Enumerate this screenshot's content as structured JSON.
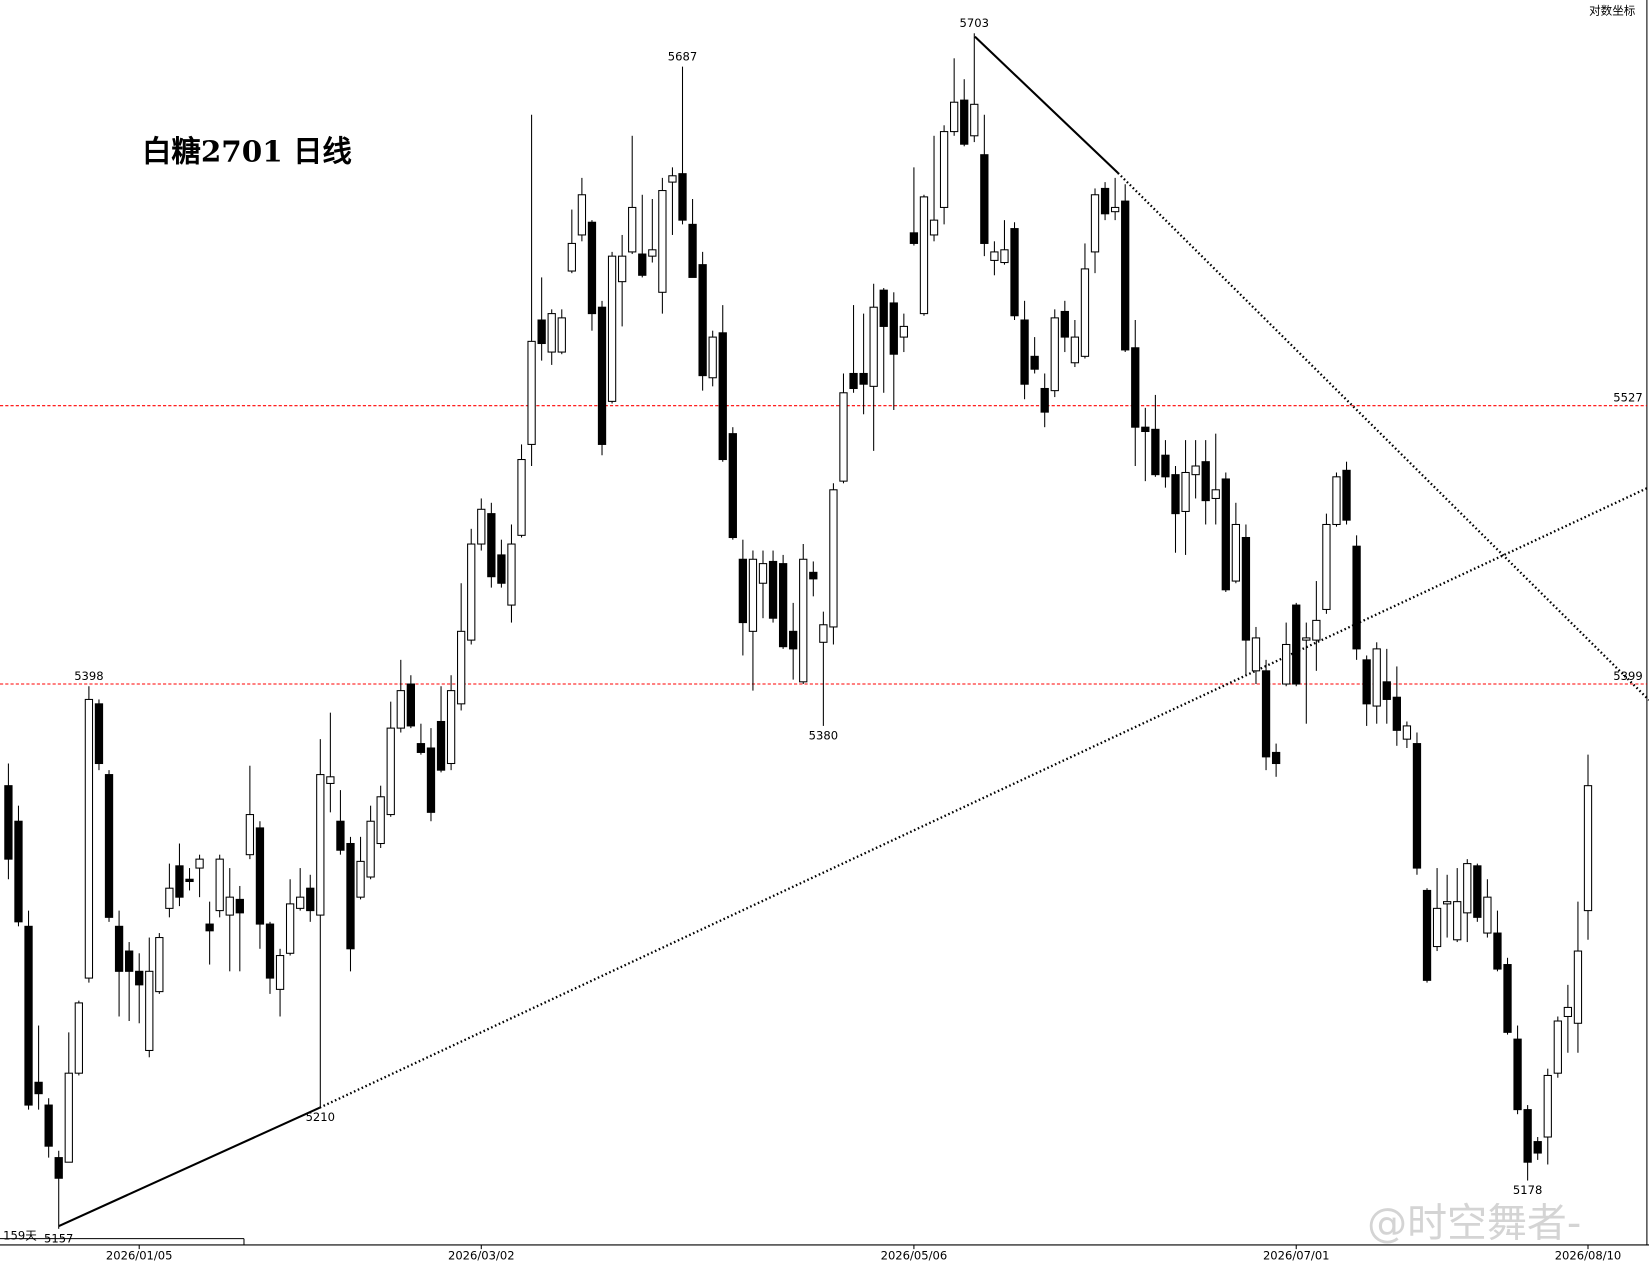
{
  "chart_data": {
    "type": "candlestick",
    "title": "白糖2701  日线",
    "scale_label": "对数坐标",
    "period_label": "159天",
    "watermark": "@时空舞者-",
    "log_scale": true,
    "ylim": [
      5150,
      5719
    ],
    "up_color": "#ffffff",
    "down_color": "#000000",
    "hlines": [
      5527,
      5399
    ],
    "hline_color": "#ff0000",
    "categories": [
      null,
      null,
      null,
      null,
      null,
      null,
      null,
      null,
      null,
      null,
      null,
      null,
      null,
      "2026/01/05",
      null,
      null,
      null,
      null,
      null,
      null,
      null,
      null,
      null,
      null,
      null,
      null,
      null,
      null,
      null,
      null,
      null,
      null,
      null,
      null,
      null,
      null,
      null,
      null,
      null,
      null,
      null,
      null,
      null,
      null,
      null,
      null,
      null,
      "2026/03/02",
      null,
      null,
      null,
      null,
      null,
      null,
      null,
      null,
      null,
      null,
      null,
      null,
      null,
      null,
      null,
      null,
      null,
      null,
      null,
      null,
      null,
      null,
      null,
      null,
      null,
      null,
      null,
      null,
      null,
      null,
      null,
      null,
      null,
      null,
      null,
      null,
      null,
      null,
      null,
      null,
      null,
      null,
      "2026/05/06",
      null,
      null,
      null,
      null,
      null,
      null,
      null,
      null,
      null,
      null,
      null,
      null,
      null,
      null,
      null,
      null,
      null,
      null,
      null,
      null,
      null,
      null,
      null,
      null,
      null,
      null,
      null,
      null,
      null,
      null,
      null,
      null,
      null,
      null,
      null,
      null,
      null,
      "2026/07/01",
      null,
      null,
      null,
      null,
      null,
      null,
      null,
      null,
      null,
      null,
      null,
      null,
      null,
      null,
      null,
      null,
      null,
      null,
      null,
      null,
      null,
      null,
      null,
      null,
      null,
      null,
      null,
      null,
      "2026/08/10"
    ],
    "open": [
      5353,
      5337,
      5290,
      5221,
      5211,
      5188,
      5186,
      5225,
      5267,
      5390,
      5358,
      5290,
      5279,
      5270,
      5235,
      5261,
      5298,
      5317,
      5311,
      5316,
      5291,
      5297,
      5295,
      5302,
      5322,
      5334,
      5291,
      5262,
      5278,
      5298,
      5307,
      5295,
      5354,
      5337,
      5327,
      5303,
      5312,
      5327,
      5340,
      5379,
      5399,
      5372,
      5370,
      5382,
      5363,
      5390,
      5419,
      5463,
      5477,
      5458,
      5435,
      5467,
      5509,
      5567,
      5552,
      5552,
      5590,
      5607,
      5613,
      5573,
      5529,
      5585,
      5599,
      5598,
      5597,
      5580,
      5632,
      5636,
      5612,
      5593,
      5540,
      5561,
      5514,
      5456,
      5423,
      5445,
      5455,
      5454,
      5423,
      5400,
      5450,
      5418,
      5425,
      5492,
      5542,
      5542,
      5536,
      5581,
      5575,
      5559,
      5608,
      5570,
      5607,
      5620,
      5656,
      5671,
      5654,
      5645,
      5595,
      5594,
      5610,
      5567,
      5550,
      5535,
      5534,
      5571,
      5547,
      5550,
      5599,
      5629,
      5618,
      5623,
      5554,
      5517,
      5516,
      5504,
      5495,
      5478,
      5495,
      5501,
      5484,
      5493,
      5446,
      5466,
      5405,
      5405,
      5368,
      5399,
      5435,
      5419,
      5419,
      5433,
      5472,
      5497,
      5462,
      5410,
      5389,
      5400,
      5393,
      5374,
      5372,
      5306,
      5281,
      5300,
      5284,
      5296,
      5317,
      5287,
      5287,
      5273,
      5240,
      5209,
      5195,
      5197,
      5225,
      5250,
      5247,
      5297
    ],
    "high": [
      5363,
      5344,
      5297,
      5246,
      5214,
      5191,
      5243,
      5257,
      5398,
      5392,
      5360,
      5297,
      5283,
      5278,
      5285,
      5287,
      5318,
      5327,
      5316,
      5322,
      5301,
      5322,
      5316,
      5308,
      5362,
      5337,
      5292,
      5280,
      5311,
      5316,
      5313,
      5374,
      5386,
      5351,
      5330,
      5330,
      5344,
      5353,
      5391,
      5410,
      5403,
      5381,
      5379,
      5398,
      5403,
      5445,
      5470,
      5484,
      5482,
      5465,
      5472,
      5509,
      5664,
      5587,
      5572,
      5572,
      5619,
      5634,
      5614,
      5576,
      5599,
      5607,
      5654,
      5626,
      5624,
      5634,
      5639,
      5687,
      5624,
      5599,
      5562,
      5574,
      5517,
      5465,
      5460,
      5460,
      5460,
      5458,
      5436,
      5463,
      5455,
      5432,
      5491,
      5542,
      5574,
      5570,
      5584,
      5582,
      5580,
      5570,
      5639,
      5626,
      5654,
      5659,
      5691,
      5681,
      5703,
      5664,
      5604,
      5614,
      5613,
      5576,
      5559,
      5542,
      5572,
      5576,
      5567,
      5603,
      5629,
      5632,
      5634,
      5631,
      5567,
      5526,
      5532,
      5511,
      5499,
      5511,
      5511,
      5511,
      5514,
      5496,
      5482,
      5472,
      5425,
      5410,
      5372,
      5427,
      5436,
      5427,
      5446,
      5477,
      5496,
      5501,
      5467,
      5412,
      5418,
      5415,
      5407,
      5382,
      5377,
      5307,
      5316,
      5313,
      5316,
      5320,
      5318,
      5311,
      5297,
      5276,
      5246,
      5211,
      5197,
      5227,
      5250,
      5264,
      5301,
      5367
    ],
    "low": [
      5311,
      5290,
      5209,
      5209,
      5188,
      5157,
      5186,
      5224,
      5265,
      5360,
      5292,
      5250,
      5248,
      5247,
      5232,
      5260,
      5294,
      5299,
      5306,
      5303,
      5273,
      5294,
      5270,
      5270,
      5320,
      5280,
      5260,
      5250,
      5277,
      5297,
      5292,
      5210,
      5341,
      5322,
      5270,
      5302,
      5311,
      5325,
      5339,
      5377,
      5379,
      5367,
      5337,
      5359,
      5360,
      5387,
      5417,
      5460,
      5443,
      5443,
      5427,
      5466,
      5499,
      5548,
      5546,
      5551,
      5589,
      5604,
      5562,
      5504,
      5528,
      5564,
      5598,
      5587,
      5594,
      5570,
      5607,
      5612,
      5587,
      5534,
      5536,
      5501,
      5465,
      5412,
      5396,
      5429,
      5427,
      5415,
      5401,
      5399,
      5439,
      5380,
      5417,
      5491,
      5533,
      5523,
      5506,
      5533,
      5525,
      5552,
      5602,
      5569,
      5604,
      5612,
      5654,
      5649,
      5651,
      5597,
      5588,
      5593,
      5567,
      5530,
      5542,
      5517,
      5531,
      5552,
      5545,
      5549,
      5589,
      5614,
      5614,
      5552,
      5499,
      5492,
      5494,
      5489,
      5459,
      5458,
      5484,
      5472,
      5472,
      5441,
      5445,
      5403,
      5399,
      5360,
      5357,
      5398,
      5398,
      5381,
      5405,
      5431,
      5471,
      5472,
      5410,
      5380,
      5381,
      5381,
      5371,
      5370,
      5313,
      5265,
      5279,
      5285,
      5283,
      5283,
      5292,
      5285,
      5270,
      5242,
      5207,
      5178,
      5187,
      5185,
      5223,
      5234,
      5234,
      5284
    ],
    "close": [
      5320,
      5292,
      5211,
      5216,
      5193,
      5179,
      5225,
      5256,
      5392,
      5363,
      5294,
      5270,
      5270,
      5264,
      5270,
      5285,
      5307,
      5303,
      5310,
      5320,
      5288,
      5320,
      5303,
      5296,
      5340,
      5291,
      5267,
      5277,
      5300,
      5303,
      5297,
      5358,
      5357,
      5324,
      5280,
      5319,
      5337,
      5348,
      5379,
      5396,
      5380,
      5368,
      5341,
      5360,
      5396,
      5423,
      5463,
      5479,
      5448,
      5445,
      5463,
      5502,
      5557,
      5556,
      5570,
      5568,
      5603,
      5626,
      5570,
      5509,
      5597,
      5597,
      5620,
      5588,
      5600,
      5628,
      5635,
      5614,
      5587,
      5541,
      5559,
      5502,
      5466,
      5427,
      5456,
      5454,
      5429,
      5416,
      5415,
      5456,
      5447,
      5426,
      5488,
      5533,
      5535,
      5537,
      5573,
      5564,
      5551,
      5564,
      5603,
      5625,
      5614,
      5656,
      5670,
      5650,
      5669,
      5603,
      5599,
      5600,
      5569,
      5537,
      5544,
      5524,
      5568,
      5559,
      5559,
      5591,
      5626,
      5617,
      5620,
      5553,
      5517,
      5515,
      5495,
      5494,
      5477,
      5496,
      5499,
      5483,
      5488,
      5442,
      5472,
      5419,
      5420,
      5366,
      5363,
      5417,
      5399,
      5420,
      5428,
      5472,
      5494,
      5474,
      5415,
      5390,
      5415,
      5392,
      5378,
      5380,
      5316,
      5266,
      5298,
      5301,
      5301,
      5318,
      5294,
      5303,
      5271,
      5243,
      5209,
      5186,
      5190,
      5224,
      5248,
      5254,
      5279,
      5353
    ]
  }
}
